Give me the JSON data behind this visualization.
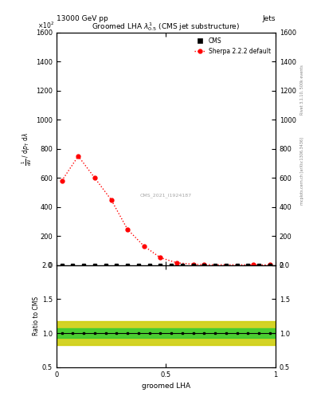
{
  "title": "Groomed LHA $\\lambda^{1}_{0.5}$ (CMS jet substructure)",
  "top_left_label": "13000 GeV pp",
  "top_right_label": "Jets",
  "watermark": "CMS_2021_I1924187",
  "right_label_top": "Rivet 3.1.10, 500k events",
  "right_label_bottom": "mcplots.cern.ch [arXiv:1306.3436]",
  "xlabel": "groomed LHA",
  "ylabel_main": "$\\frac{1}{\\mathrm{d}N}$ / $\\mathrm{d}p_\\mathrm{T}$ $\\mathrm{d}\\lambda$",
  "ylabel_ratio": "Ratio to CMS",
  "sherpa_x": [
    0.025,
    0.1,
    0.175,
    0.25,
    0.325,
    0.4,
    0.475,
    0.55,
    0.625,
    0.675,
    0.9,
    0.975
  ],
  "sherpa_y": [
    580,
    750,
    600,
    450,
    245,
    130,
    50,
    15,
    5,
    2,
    1,
    0.5
  ],
  "cms_x": [
    0.025,
    0.075,
    0.125,
    0.175,
    0.225,
    0.275,
    0.325,
    0.375,
    0.425,
    0.475,
    0.525,
    0.575,
    0.625,
    0.675,
    0.725,
    0.775,
    0.825,
    0.875,
    0.925,
    0.975
  ],
  "cms_y": [
    0,
    0,
    0,
    0,
    0,
    0,
    0,
    0,
    0,
    0,
    0,
    0,
    0,
    0,
    0,
    0,
    0,
    0,
    0,
    0
  ],
  "ylim_main": [
    0,
    1600
  ],
  "xlim": [
    0,
    1
  ],
  "ylim_ratio": [
    0.5,
    2.0
  ],
  "green_band_low": 0.93,
  "green_band_high": 1.07,
  "yellow_band_low": 0.82,
  "yellow_band_high": 1.18,
  "cms_color": "black",
  "sherpa_color": "red",
  "green_color": "#33cc33",
  "yellow_color": "#cccc00",
  "yticks_main": [
    0,
    200,
    400,
    600,
    800,
    1000,
    1200,
    1400,
    1600
  ],
  "yticks_ratio": [
    0.5,
    1.0,
    1.5,
    2.0
  ],
  "xticks": [
    0,
    0.5,
    1.0
  ]
}
